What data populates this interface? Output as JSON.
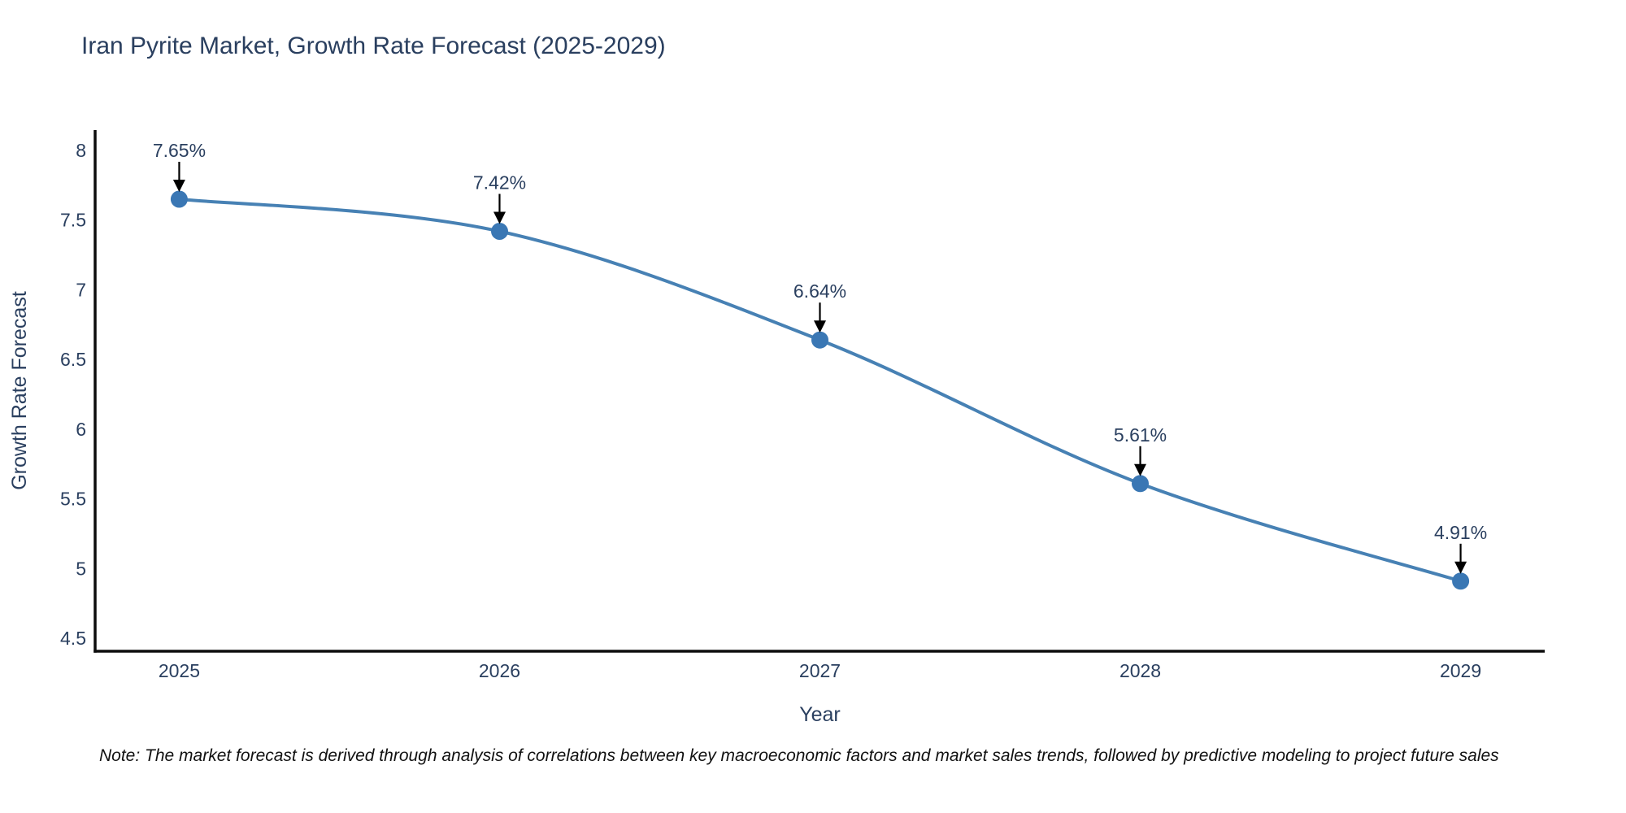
{
  "chart_data": {
    "type": "line",
    "title": "Iran Pyrite Market, Growth Rate Forecast (2025-2029)",
    "xlabel": "Year",
    "ylabel": "Growth Rate Forecast",
    "categories": [
      "2025",
      "2026",
      "2027",
      "2028",
      "2029"
    ],
    "series": [
      {
        "name": "Growth Rate Forecast",
        "values": [
          7.65,
          7.42,
          6.64,
          5.61,
          4.91
        ],
        "point_labels": [
          "7.65%",
          "7.42%",
          "6.64%",
          "5.61%",
          "4.91%"
        ]
      }
    ],
    "ytick_values": [
      8,
      7.5,
      7,
      6.5,
      6,
      5.5,
      5,
      4.5
    ],
    "ytick_labels": [
      "8",
      "7.5",
      "7",
      "6.5",
      "6",
      "5.5",
      "5",
      "4.5"
    ],
    "ylim": [
      4.407,
      8.146
    ],
    "grid": false,
    "legend": false,
    "line_shape": "spline",
    "annotations_have_arrows": true,
    "colors": {
      "line": "#4781b4",
      "marker": "#3a77b4",
      "text": "#2a3f5f",
      "axis": "#0d0d0d",
      "arrow": "#000000"
    }
  },
  "note": "Note: The market forecast is derived through analysis of correlations between key macroeconomic factors and market sales trends, followed by predictive modeling to project future sales"
}
